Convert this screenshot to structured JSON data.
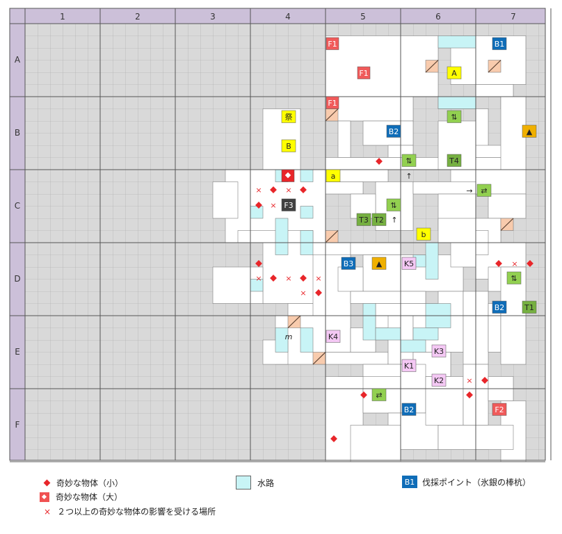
{
  "columns": [
    "1",
    "2",
    "3",
    "4",
    "5",
    "6",
    "7"
  ],
  "rows": [
    "A",
    "B",
    "C",
    "D",
    "E",
    "F"
  ],
  "colors": {
    "header_bg": "#ccc0d9",
    "grid_bg": "#d9d9d9",
    "room": "#ffffff",
    "water": "#c8f4f6",
    "stair": "#f8cbad",
    "blue": "#0f6db8",
    "green": "#92d050",
    "yellow": "#ffff00",
    "orange": "#f0b000",
    "pink": "#f4c8f4",
    "red": "#f05a5a",
    "darkgreen": "#76b041",
    "gray": "#404040",
    "object": "#e8262a"
  },
  "markers": [
    {
      "t": "F1",
      "c": "red"
    },
    {
      "t": "F1",
      "c": "red"
    },
    {
      "t": "F1",
      "c": "red"
    },
    {
      "t": "B1",
      "c": "blue"
    },
    {
      "t": "A",
      "c": "yellow"
    },
    {
      "t": "⇅",
      "c": "green"
    },
    {
      "t": "▲",
      "c": "orange"
    },
    {
      "t": "祭",
      "c": "yellow"
    },
    {
      "t": "B2",
      "c": "blue"
    },
    {
      "t": "B",
      "c": "yellow"
    },
    {
      "t": "⇅",
      "c": "green"
    },
    {
      "t": "T4",
      "c": "darkgreen"
    },
    {
      "t": "a",
      "c": "yellow"
    },
    {
      "t": "↑",
      "c": "plain"
    },
    {
      "t": "→",
      "c": "plain"
    },
    {
      "t": "⇄",
      "c": "green"
    },
    {
      "t": "F3",
      "c": "gray"
    },
    {
      "t": "⇅",
      "c": "green"
    },
    {
      "t": "T3",
      "c": "darkgreen"
    },
    {
      "t": "T2",
      "c": "darkgreen"
    },
    {
      "t": "↑",
      "c": "plain"
    },
    {
      "t": "b",
      "c": "yellow"
    },
    {
      "t": "B3",
      "c": "blue"
    },
    {
      "t": "▲",
      "c": "orange"
    },
    {
      "t": "K5",
      "c": "pink"
    },
    {
      "t": "⇅",
      "c": "green"
    },
    {
      "t": "B2",
      "c": "blue"
    },
    {
      "t": "T1",
      "c": "darkgreen"
    },
    {
      "t": "m",
      "c": "plain"
    },
    {
      "t": "K4",
      "c": "pink"
    },
    {
      "t": "K3",
      "c": "pink"
    },
    {
      "t": "K1",
      "c": "pink"
    },
    {
      "t": "K2",
      "c": "pink"
    },
    {
      "t": "⇄",
      "c": "green"
    },
    {
      "t": "B2",
      "c": "blue"
    },
    {
      "t": "F2",
      "c": "red"
    }
  ],
  "legend": {
    "small_object": "奇妙な物体（小）",
    "large_object": "奇妙な物体（大）",
    "overlap": "２つ以上の奇妙な物体の影響を受ける場所",
    "water": "水路",
    "b1_label": "B1",
    "logging": "伐採ポイント（氷銀の棒杭）"
  }
}
